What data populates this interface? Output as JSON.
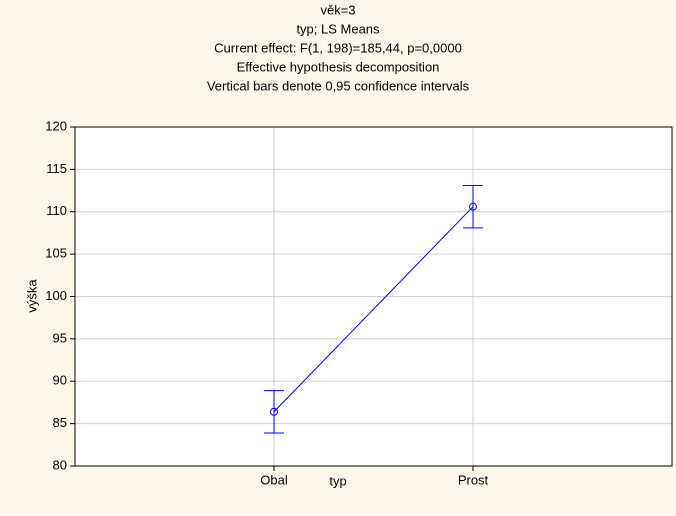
{
  "chart_data": {
    "type": "line",
    "title_lines": [
      "věk=3",
      "typ; LS Means",
      "Current effect: F(1, 198)=185,44, p=0,0000",
      "Effective hypothesis decomposition",
      "Vertical bars denote 0,95 confidence intervals"
    ],
    "x_label": "typ",
    "y_label": "výška",
    "categories": [
      "Obal",
      "Prost"
    ],
    "series": [
      {
        "name": "výška",
        "color": "#0000ff",
        "values": [
          86.4,
          110.6
        ],
        "errors": [
          2.5,
          2.5
        ]
      }
    ],
    "ylim": [
      80,
      120
    ],
    "yticks": [
      80,
      85,
      90,
      95,
      100,
      105,
      110,
      115,
      120
    ],
    "grid": true
  }
}
